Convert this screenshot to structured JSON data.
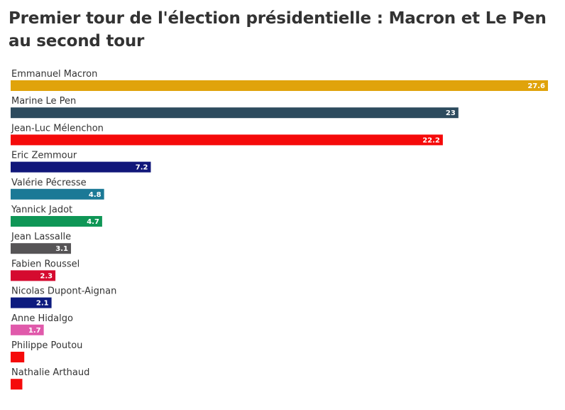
{
  "chart_data": {
    "type": "bar",
    "orientation": "horizontal",
    "title": "Premier tour de l'élection présidentielle : Macron et Le Pen au second tour",
    "xlabel": "",
    "ylabel": "",
    "xlim": [
      0,
      27.6
    ],
    "categories": [
      "Emmanuel Macron",
      "Marine Le Pen",
      "Jean-Luc Mélenchon",
      "Eric Zemmour",
      "Valérie Pécresse",
      "Yannick Jadot",
      "Jean Lassalle",
      "Fabien Roussel",
      "Nicolas Dupont-Aignan",
      "Anne Hidalgo",
      "Philippe Poutou",
      "Nathalie Arthaud"
    ],
    "values": [
      27.6,
      23,
      22.2,
      7.2,
      4.8,
      4.7,
      3.1,
      2.3,
      2.1,
      1.7,
      0.7,
      0.6
    ],
    "value_labels": [
      "27.6",
      "23",
      "22.2",
      "7.2",
      "4.8",
      "4.7",
      "3.1",
      "2.3",
      "2.1",
      "1.7",
      "",
      ""
    ],
    "colors": [
      "#e0a30b",
      "#2d4b5e",
      "#f50a0a",
      "#11177a",
      "#1b7996",
      "#0f9656",
      "#565456",
      "#d50a2f",
      "#0d1b7f",
      "#e05aab",
      "#f50a0a",
      "#f50a0a"
    ]
  }
}
